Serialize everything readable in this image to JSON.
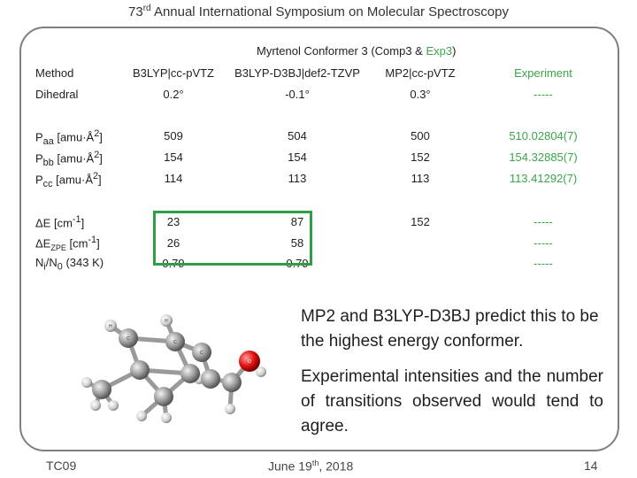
{
  "header": {
    "prefix": "73",
    "sup": "rd",
    "rest": "Annual International Symposium on Molecular Spectroscopy"
  },
  "table": {
    "group_title": {
      "text": "Myrtenol Conformer 3 (Comp3 & ",
      "green": "Exp3",
      "close": ")"
    },
    "columns": [
      "Method",
      "B3LYP|cc-pVTZ",
      "B3LYP-D3BJ|def2-TZVP",
      "MP2|cc-pVTZ",
      "Experiment"
    ],
    "rows": {
      "dihedral": {
        "label": "Dihedral",
        "values": [
          "0.2°",
          "-0.1°",
          "0.3°",
          "-----"
        ]
      },
      "paa": {
        "label": "P",
        "sub": "aa",
        "unit": " [amu·Å",
        "sup": "2",
        "close": "]",
        "values": [
          "509",
          "504",
          "500",
          "510.02804(7)"
        ]
      },
      "pbb": {
        "label": "P",
        "sub": "bb",
        "unit": " [amu·Å",
        "sup": "2",
        "close": "]",
        "values": [
          "154",
          "154",
          "152",
          "154.32885(7)"
        ]
      },
      "pcc": {
        "label": "P",
        "sub": "cc",
        "unit": " [amu·Å",
        "sup": "2",
        "close": "]",
        "values": [
          "114",
          "113",
          "113",
          "113.41292(7)"
        ]
      },
      "de": {
        "label": "ΔE [cm",
        "sup": "-1",
        "close": "]",
        "values": [
          "23",
          "87",
          "152",
          "-----"
        ]
      },
      "dezpe": {
        "label": "ΔE",
        "sub": "ZPE",
        "unit": " [cm",
        "sup": "-1",
        "close": "]",
        "values": [
          "26",
          "58",
          "",
          "-----"
        ]
      },
      "ratio": {
        "label": "N",
        "sub": "i",
        "mid": "/N",
        "sub2": "0",
        "rest": " (343 K)",
        "values": [
          "0.79",
          "0.79",
          "",
          "-----"
        ]
      }
    }
  },
  "notes": {
    "first": "MP2 and B3LYP-D3BJ predict this to be the highest energy conformer.",
    "second": "Experimental intensities and the number of transitions observed would tend to agree."
  },
  "footer": {
    "left": "TC09",
    "date_prefix": "June 19",
    "date_sup": "th",
    "date_rest": ", 2018",
    "page": "14"
  },
  "colors": {
    "accent_green": "#3aa648",
    "highlight_box": "#2ea043",
    "frame": "#7f7f7f"
  },
  "molecule": {
    "atom_label": "H",
    "atom_label_c": "C",
    "atom_label_o": "O"
  }
}
